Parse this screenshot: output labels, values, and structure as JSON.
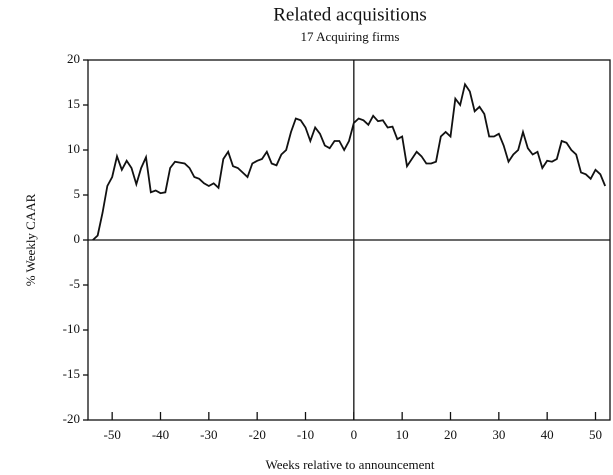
{
  "chart_data": {
    "type": "line",
    "title": "Related acquisitions",
    "subtitle": "17 Acquiring firms",
    "y_label": "% Weekly CAAR",
    "x_label": "Weeks relative to announcement",
    "x": [
      -54,
      -53,
      -52,
      -51,
      -50,
      -49,
      -48,
      -47,
      -46,
      -45,
      -44,
      -43,
      -42,
      -41,
      -40,
      -39,
      -38,
      -37,
      -36,
      -35,
      -34,
      -33,
      -32,
      -31,
      -30,
      -29,
      -28,
      -27,
      -26,
      -25,
      -24,
      -23,
      -22,
      -21,
      -20,
      -19,
      -18,
      -17,
      -16,
      -15,
      -14,
      -13,
      -12,
      -11,
      -10,
      -9,
      -8,
      -7,
      -6,
      -5,
      -4,
      -3,
      -2,
      -1,
      0,
      1,
      2,
      3,
      4,
      5,
      6,
      7,
      8,
      9,
      10,
      11,
      12,
      13,
      14,
      15,
      16,
      17,
      18,
      19,
      20,
      21,
      22,
      23,
      24,
      25,
      26,
      27,
      28,
      29,
      30,
      31,
      32,
      33,
      34,
      35,
      36,
      37,
      38,
      39,
      40,
      41,
      42,
      43,
      44,
      45,
      46,
      47,
      48,
      49,
      50,
      51,
      52
    ],
    "series": [
      {
        "name": "CAAR",
        "color": "#111111",
        "values": [
          0,
          0.5,
          3,
          6,
          7,
          9.3,
          7.8,
          8.8,
          8,
          6.2,
          8,
          9.2,
          5.3,
          5.5,
          5.2,
          5.3,
          8,
          8.7,
          8.6,
          8.5,
          8,
          7,
          6.8,
          6.3,
          6,
          6.3,
          5.8,
          9,
          9.8,
          8.2,
          8,
          7.5,
          7,
          8.5,
          8.8,
          9,
          9.8,
          8.5,
          8.3,
          9.5,
          10,
          12,
          13.5,
          13.3,
          12.5,
          11,
          12.5,
          11.8,
          10.5,
          10.2,
          11,
          11,
          10,
          11,
          13,
          13.5,
          13.3,
          12.8,
          13.8,
          13.2,
          13.3,
          12.5,
          12.6,
          11.2,
          11.5,
          8.2,
          9,
          9.8,
          9.3,
          8.5,
          8.5,
          8.7,
          11.5,
          12,
          11.5,
          15.7,
          15,
          17.3,
          16.5,
          14.3,
          14.8,
          14,
          11.5,
          11.5,
          11.8,
          10.5,
          8.7,
          9.5,
          10,
          12,
          10.2,
          9.5,
          9.8,
          8,
          8.8,
          8.7,
          9,
          11,
          10.8,
          10,
          9.5,
          7.5,
          7.3,
          6.8,
          7.8,
          7.3,
          6
        ]
      }
    ],
    "xlim": [
      -55,
      53
    ],
    "ylim": [
      -20,
      20
    ],
    "xticks": [
      -50,
      -40,
      -30,
      -20,
      -10,
      0,
      10,
      20,
      30,
      40,
      50
    ],
    "yticks": [
      20,
      15,
      10,
      5,
      0,
      -5,
      -10,
      -15,
      -20
    ],
    "grid": false
  }
}
